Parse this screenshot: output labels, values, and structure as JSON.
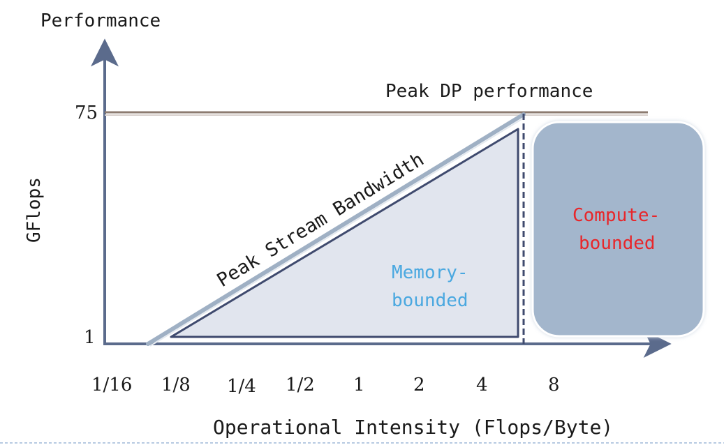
{
  "axes": {
    "y_title": "Performance",
    "y_units": "GFlops",
    "x_title": "Operational Intensity (Flops/Byte)",
    "y_ticks": [
      "75",
      "1"
    ],
    "x_ticks": [
      "1/16",
      "1/8",
      "1/4",
      "1/2",
      "1",
      "2",
      "4",
      "8"
    ]
  },
  "lines": {
    "peak_performance": "Peak DP performance",
    "bandwidth": "Peak Stream Bandwidth"
  },
  "regions": {
    "memory": [
      "Memory-",
      "bounded"
    ],
    "compute": [
      "Compute-",
      "bounded"
    ]
  },
  "colors": {
    "axis": "#5b6b8c",
    "peak_line": "#8c7b70",
    "bandwidth_line": "#9fb0c4",
    "triangle_fill": "#e1e5ee",
    "triangle_stroke": "#3f4a6e",
    "compute_box": "#a3b6cc",
    "memory_text": "#4aa8e0",
    "compute_text": "#e8262a",
    "footer_dash": "#9fb8d8"
  }
}
